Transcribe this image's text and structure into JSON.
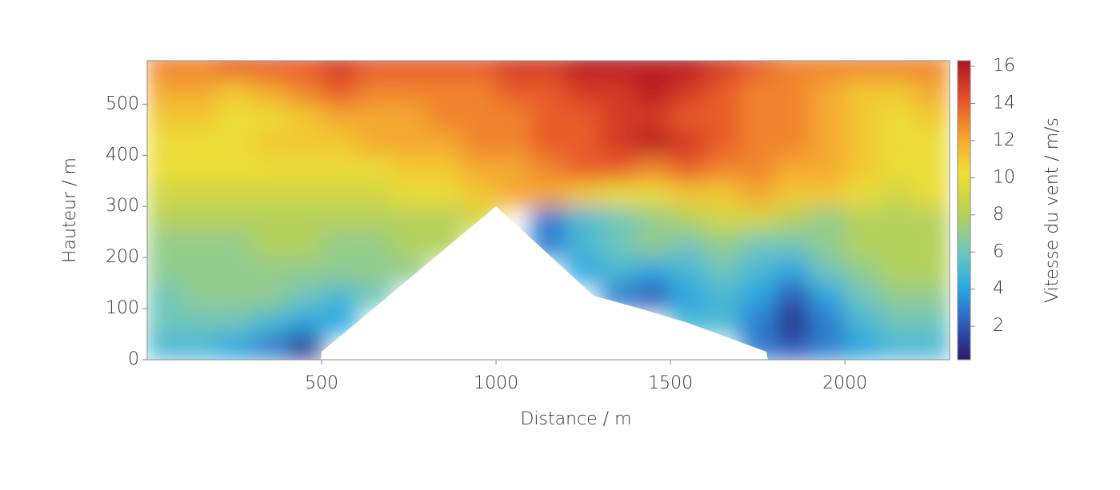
{
  "chart_data": {
    "type": "heatmap",
    "xlabel": "Distance / m",
    "ylabel": "Hauteur / m",
    "colorbar_label": "Vitesse du vent / m/s",
    "x": [
      50,
      150,
      250,
      350,
      450,
      550,
      650,
      750,
      850,
      950,
      1050,
      1150,
      1250,
      1350,
      1450,
      1550,
      1650,
      1750,
      1850,
      1950,
      2050,
      2150,
      2250
    ],
    "y": [
      25,
      75,
      125,
      175,
      225,
      275,
      325,
      375,
      425,
      475,
      525,
      575
    ],
    "z": [
      [
        5,
        5,
        4,
        3,
        1,
        null,
        null,
        null,
        null,
        null,
        null,
        null,
        null,
        null,
        null,
        null,
        null,
        3,
        2,
        3,
        4,
        5,
        5
      ],
      [
        6,
        6,
        6,
        5,
        4,
        4,
        null,
        null,
        null,
        null,
        null,
        null,
        null,
        null,
        null,
        5,
        5,
        3,
        1,
        3,
        5,
        6,
        6
      ],
      [
        6,
        7,
        7,
        7,
        6,
        5,
        6,
        null,
        null,
        null,
        null,
        null,
        null,
        3,
        2,
        4,
        5,
        4,
        2,
        4,
        6,
        7,
        7
      ],
      [
        7,
        7,
        7,
        7,
        7,
        7,
        7,
        7,
        null,
        null,
        null,
        null,
        4,
        5,
        4,
        5,
        6,
        5,
        4,
        6,
        7,
        8,
        8
      ],
      [
        7,
        7,
        7,
        8,
        8,
        7,
        7,
        8,
        8,
        null,
        null,
        3,
        5,
        6,
        7,
        6,
        7,
        6,
        6,
        7,
        8,
        8,
        8
      ],
      [
        8,
        8,
        8,
        8,
        8,
        8,
        8,
        8,
        8,
        9,
        null,
        3,
        5,
        6,
        7,
        8,
        9,
        9,
        8,
        7,
        8,
        8,
        8
      ],
      [
        9,
        9,
        9,
        9,
        9,
        9,
        9,
        10,
        10,
        11,
        12,
        12,
        11,
        10,
        10,
        11,
        11,
        12,
        11,
        11,
        10,
        9,
        10
      ],
      [
        10,
        10,
        10,
        10,
        10,
        10,
        10,
        11,
        11,
        12,
        12,
        13,
        14,
        14,
        13,
        14,
        13,
        13,
        12,
        12,
        11,
        10,
        10
      ],
      [
        10,
        10,
        10,
        11,
        11,
        11,
        12,
        12,
        12,
        13,
        13,
        14,
        14,
        15,
        16,
        15,
        14,
        13,
        13,
        12,
        11,
        10,
        10
      ],
      [
        11,
        11,
        10,
        10,
        11,
        12,
        12,
        12,
        13,
        13,
        13,
        14,
        14,
        15,
        15,
        14,
        14,
        13,
        13,
        12,
        11,
        10,
        11
      ],
      [
        12,
        12,
        11,
        12,
        13,
        14,
        13,
        13,
        13,
        13,
        14,
        14,
        15,
        15,
        16,
        15,
        14,
        13,
        13,
        12,
        11,
        11,
        12
      ],
      [
        13,
        13,
        14,
        14,
        14,
        15,
        14,
        14,
        14,
        14,
        15,
        15,
        16,
        16,
        16,
        16,
        15,
        14,
        13,
        13,
        13,
        13,
        13
      ]
    ],
    "xlim": [
      0,
      2300
    ],
    "ylim": [
      0,
      585
    ],
    "xticks": [
      500,
      1000,
      1500,
      2000
    ],
    "yticks": [
      0,
      100,
      200,
      300,
      400,
      500
    ],
    "clim": [
      0.2,
      16.3
    ],
    "cticks": [
      2,
      4,
      6,
      8,
      10,
      12,
      14,
      16
    ],
    "colormap": [
      "#2a1a66",
      "#2f5fc0",
      "#2aaee6",
      "#78c9b4",
      "#bcd24e",
      "#f1df33",
      "#f5a12f",
      "#e6502a",
      "#b01420"
    ]
  }
}
